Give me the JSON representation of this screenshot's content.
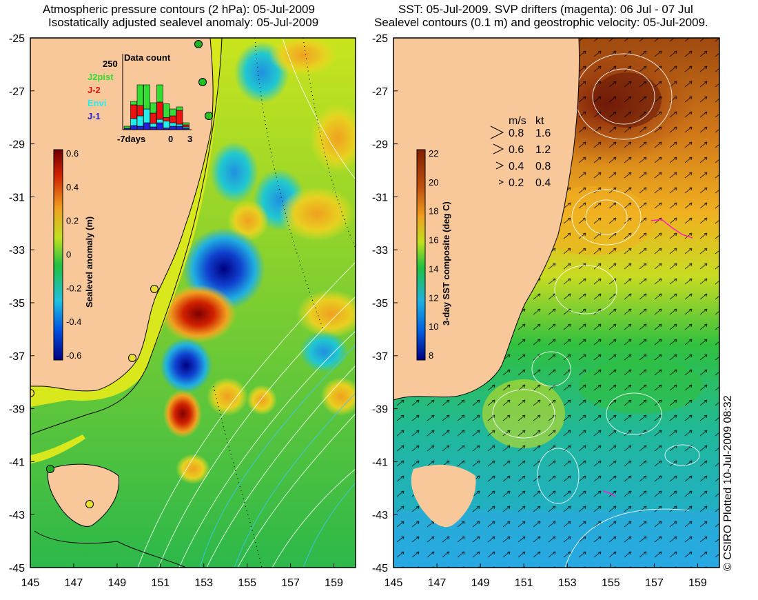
{
  "left_panel": {
    "title_line1": "Atmospheric pressure contours (2 hPa): 05-Jul-2009",
    "title_line2": "Isostatically adjusted sealevel anomaly: 05-Jul-2009",
    "y_ticks": [
      "-25",
      "-27",
      "-29",
      "-31",
      "-33",
      "-35",
      "-37",
      "-39",
      "-41",
      "-43",
      "-45"
    ],
    "x_ticks": [
      "145",
      "147",
      "149",
      "151",
      "153",
      "155",
      "157",
      "159"
    ],
    "colorbar": {
      "label": "Sealevel anomaly (m)",
      "ticks": [
        "0.6",
        "0.4",
        "0.2",
        "0",
        "-0.2",
        "-0.4",
        "-0.6"
      ]
    },
    "inset": {
      "title": "Data count",
      "y_label": "250",
      "x_labels": [
        "-7days",
        "0",
        "3"
      ],
      "legend": [
        {
          "name": "J2pist",
          "color": "#33dd33"
        },
        {
          "name": "J-2",
          "color": "#ee1111"
        },
        {
          "name": "Envi",
          "color": "#22eeee"
        },
        {
          "name": "J-1",
          "color": "#2222dd"
        }
      ]
    }
  },
  "right_panel": {
    "title_line1": "SST: 05-Jul-2009. SVP drifters (magenta): 06 Jul - 07 Jul",
    "title_line2": "Sealevel contours (0.1 m) and geostrophic velocity: 05-Jul-2009.",
    "y_ticks": [
      "-25",
      "-27",
      "-29",
      "-31",
      "-33",
      "-35",
      "-37",
      "-39",
      "-41",
      "-43",
      "-45"
    ],
    "x_ticks": [
      "145",
      "147",
      "149",
      "151",
      "153",
      "155",
      "157",
      "159"
    ],
    "colorbar": {
      "label": "3-day SST composite (deg C)",
      "ticks": [
        "22",
        "20",
        "18",
        "16",
        "14",
        "12",
        "10",
        "8"
      ]
    },
    "velocity_key": {
      "header_ms": "m/s",
      "header_kt": "kt",
      "rows": [
        {
          "ms": "0.8",
          "kt": "1.6"
        },
        {
          "ms": "0.6",
          "kt": "1.2"
        },
        {
          "ms": "0.4",
          "kt": "0.8"
        },
        {
          "ms": "0.2",
          "kt": "0.4"
        }
      ]
    }
  },
  "credit": "© CSIRO Plotted 10-Jul-2009 08:32",
  "colors": {
    "land": "#f9c89a",
    "anomaly_scale": [
      "#000080",
      "#0050e0",
      "#20c0e0",
      "#20c040",
      "#b0e020",
      "#f0a020",
      "#d02000",
      "#700000"
    ],
    "sst_scale": [
      "#000080",
      "#0060e0",
      "#20b0e0",
      "#20c040",
      "#c0e020",
      "#f0a020",
      "#c05010",
      "#802000"
    ]
  }
}
